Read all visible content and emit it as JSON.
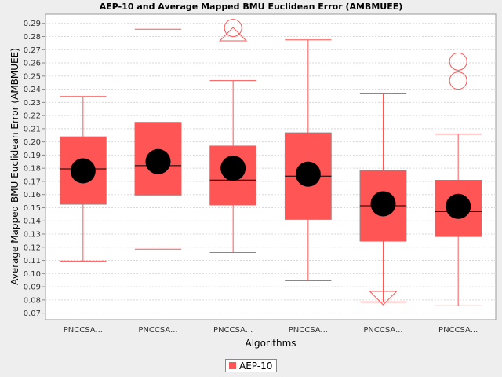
{
  "chart_data": {
    "type": "boxplot",
    "title": "AEP-10 and Average Mapped BMU Euclidean Error (AMBMUEE)",
    "xlabel": "Algorithms",
    "ylabel": "Average Mapped BMU Euclidean Error (AMBMUEE)",
    "ylim": [
      0.065,
      0.297
    ],
    "yticks": [
      0.07,
      0.08,
      0.09,
      0.1,
      0.11,
      0.12,
      0.13,
      0.14,
      0.15,
      0.16,
      0.17,
      0.18,
      0.19,
      0.2,
      0.21,
      0.22,
      0.23,
      0.24,
      0.25,
      0.26,
      0.27,
      0.28,
      0.29
    ],
    "grid": true,
    "legend_position": "bottom",
    "categories": [
      "PNCCSA...",
      "PNCCSA...",
      "PNCCSA...",
      "PNCCSA...",
      "PNCCSA...",
      "PNCCSA..."
    ],
    "series": [
      {
        "name": "AEP-10",
        "color": "#ff5555",
        "boxes": [
          {
            "whisker_low": 0.1095,
            "q1": 0.1525,
            "median": 0.1795,
            "q3": 0.204,
            "whisker_high": 0.2345,
            "mean": 0.178,
            "outliers": [],
            "far_high": false,
            "far_low": false
          },
          {
            "whisker_low": 0.1185,
            "q1": 0.1595,
            "median": 0.182,
            "q3": 0.215,
            "whisker_high": 0.2855,
            "mean": 0.185,
            "outliers": [],
            "far_high": false,
            "far_low": false
          },
          {
            "whisker_low": 0.116,
            "q1": 0.152,
            "median": 0.171,
            "q3": 0.197,
            "whisker_high": 0.2465,
            "mean": 0.18,
            "outliers": [
              0.2865
            ],
            "far_high": true,
            "far_low": false
          },
          {
            "whisker_low": 0.0945,
            "q1": 0.141,
            "median": 0.174,
            "q3": 0.207,
            "whisker_high": 0.2775,
            "mean": 0.1755,
            "outliers": [],
            "far_high": false,
            "far_low": false
          },
          {
            "whisker_low": 0.0785,
            "q1": 0.1245,
            "median": 0.1515,
            "q3": 0.1785,
            "whisker_high": 0.2365,
            "mean": 0.153,
            "outliers": [],
            "far_high": false,
            "far_low": true
          },
          {
            "whisker_low": 0.0755,
            "q1": 0.128,
            "median": 0.147,
            "q3": 0.171,
            "whisker_high": 0.206,
            "mean": 0.151,
            "outliers": [
              0.2465,
              0.261
            ],
            "far_high": false,
            "far_low": false
          }
        ]
      }
    ]
  },
  "legend": {
    "label": "AEP-10"
  }
}
